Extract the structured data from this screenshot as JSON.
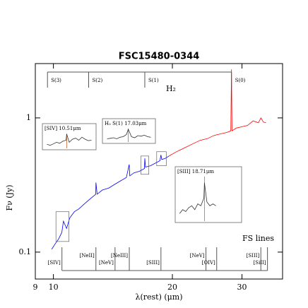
{
  "chart_data": {
    "type": "line",
    "title": "FSC15480-0344",
    "x_label": "λ(rest)  (μm)",
    "y_label": "Fν (Jy)",
    "log_x": true,
    "log_y": true,
    "xlim": [
      9,
      38
    ],
    "xticks": [
      9,
      10,
      20,
      30
    ],
    "ylim": [
      0.063,
      2.54
    ],
    "yticks": [
      0.1,
      1
    ],
    "series": [
      {
        "color": "#0000ff",
        "x": [
          9.9,
          10.1,
          10.3,
          10.5,
          10.6,
          10.8,
          11.0,
          11.3,
          11.6,
          12.0,
          12.4,
          12.8,
          12.81,
          12.9,
          13.3,
          13.8,
          14.3,
          14.8,
          15.3,
          15.55,
          15.6,
          16.0,
          16.5,
          17.0,
          17.03,
          17.1,
          17.6,
          18.1,
          18.6,
          18.71,
          18.8,
          19.2,
          19.6
        ],
        "values": [
          0.105,
          0.115,
          0.125,
          0.14,
          0.17,
          0.15,
          0.18,
          0.2,
          0.21,
          0.23,
          0.25,
          0.27,
          0.33,
          0.27,
          0.29,
          0.3,
          0.32,
          0.34,
          0.36,
          0.45,
          0.37,
          0.39,
          0.4,
          0.42,
          0.5,
          0.43,
          0.44,
          0.46,
          0.48,
          0.53,
          0.49,
          0.5,
          0.52
        ]
      },
      {
        "color": "#ff0000",
        "x": [
          19.6,
          20.5,
          21.5,
          22.5,
          23.5,
          24.5,
          25.5,
          26.5,
          27.5,
          28.1,
          28.22,
          28.3,
          29,
          30,
          31,
          32,
          33,
          33.5,
          34,
          34.5
        ],
        "values": [
          0.52,
          0.56,
          0.6,
          0.64,
          0.68,
          0.7,
          0.74,
          0.76,
          0.78,
          0.8,
          2.3,
          0.8,
          0.84,
          0.86,
          0.88,
          0.95,
          0.92,
          1.0,
          0.93,
          0.92
        ]
      }
    ],
    "h2_label": "H₂",
    "h2_lines": [
      {
        "label": "S(3)",
        "x": 9.66
      },
      {
        "label": "S(2)",
        "x": 12.28
      },
      {
        "label": "S(1)",
        "x": 17.03
      },
      {
        "label": "S(0)",
        "x": 28.22
      }
    ],
    "fs_label": "FS lines",
    "fs_lines": [
      {
        "label": "[SIV]",
        "x": 10.51
      },
      {
        "label": "[NeII]",
        "x": 12.81
      },
      {
        "label": "[NeV]",
        "x": 14.32
      },
      {
        "label": "[NeIII]",
        "x": 15.56
      },
      {
        "label": "[SIII]",
        "x": 18.71
      },
      {
        "label": "[NeV]",
        "x": 24.32
      },
      {
        "label": "[OIV]",
        "x": 25.89
      },
      {
        "label": "[SIII]",
        "x": 33.48
      },
      {
        "label": "[SiII]",
        "x": 34.8
      }
    ],
    "insets": [
      {
        "label": "[SIV] 10.51μm",
        "marker": 10.51,
        "xlim": [
          10.15,
          10.95
        ],
        "ylim": [
          0.12,
          0.2
        ],
        "color": "#333333",
        "marker_color": "#cc6633",
        "x": [
          10.2,
          10.25,
          10.3,
          10.35,
          10.4,
          10.45,
          10.5,
          10.51,
          10.55,
          10.6,
          10.65,
          10.7,
          10.75,
          10.8,
          10.85,
          10.9
        ],
        "values": [
          0.14,
          0.135,
          0.142,
          0.15,
          0.145,
          0.155,
          0.16,
          0.19,
          0.15,
          0.165,
          0.17,
          0.16,
          0.175,
          0.165,
          0.158,
          0.16
        ]
      },
      {
        "label": "H₂ S(1) 17.03μm",
        "marker": 17.03,
        "xlim": [
          16.65,
          17.43
        ],
        "ylim": [
          0.38,
          0.52
        ],
        "color": "#333333",
        "marker_color": "#cc6633",
        "x": [
          16.7,
          16.75,
          16.8,
          16.85,
          16.9,
          16.95,
          17.0,
          17.03,
          17.08,
          17.13,
          17.18,
          17.23,
          17.28,
          17.33,
          17.38
        ],
        "values": [
          0.41,
          0.415,
          0.42,
          0.41,
          0.425,
          0.43,
          0.45,
          0.5,
          0.43,
          0.42,
          0.44,
          0.435,
          0.445,
          0.43,
          0.425
        ]
      },
      {
        "label": "[SIII] 18.71μm",
        "marker": 18.71,
        "xlim": [
          18.25,
          19.3
        ],
        "ylim": [
          0.44,
          0.56
        ],
        "color": "#333333",
        "marker_color": "#cc6633",
        "x": [
          18.3,
          18.35,
          18.4,
          18.45,
          18.5,
          18.55,
          18.6,
          18.65,
          18.7,
          18.71,
          18.75,
          18.8,
          18.85,
          18.9
        ],
        "values": [
          0.46,
          0.47,
          0.465,
          0.475,
          0.48,
          0.47,
          0.485,
          0.48,
          0.5,
          0.54,
          0.49,
          0.48,
          0.485,
          0.48
        ]
      }
    ]
  }
}
